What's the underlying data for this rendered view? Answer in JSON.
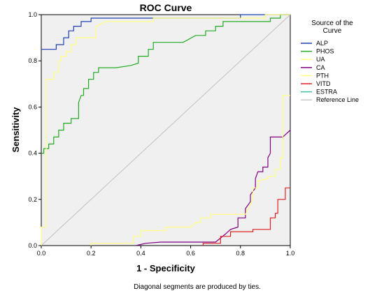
{
  "chart_data": {
    "type": "line",
    "title": "ROC Curve",
    "xlabel": "1 - Specificity",
    "ylabel": "Sensitivity",
    "xlim": [
      0,
      1
    ],
    "ylim": [
      0,
      1
    ],
    "xticks": [
      "0.0",
      "0.2",
      "0.4",
      "0.6",
      "0.8",
      "1.0"
    ],
    "yticks": [
      "0.0",
      "0.2",
      "0.4",
      "0.6",
      "0.8",
      "1.0"
    ],
    "grid": false,
    "plot_background": "#f0f0f0",
    "legend": {
      "title": "Source of the Curve",
      "position": "right"
    },
    "footnote": "Diagonal segments are produced by ties.",
    "series": [
      {
        "name": "ALP",
        "color": "#1f3fb4",
        "points": [
          [
            0,
            0.85
          ],
          [
            0.06,
            0.85
          ],
          [
            0.06,
            0.87
          ],
          [
            0.09,
            0.87
          ],
          [
            0.09,
            0.9
          ],
          [
            0.11,
            0.9
          ],
          [
            0.11,
            0.93
          ],
          [
            0.13,
            0.93
          ],
          [
            0.13,
            0.95
          ],
          [
            0.16,
            0.95
          ],
          [
            0.16,
            0.97
          ],
          [
            0.2,
            0.97
          ],
          [
            0.2,
            0.985
          ],
          [
            0.8,
            0.985
          ],
          [
            0.8,
            1.0
          ],
          [
            1,
            1
          ]
        ]
      },
      {
        "name": "PHOS",
        "color": "#22aa22",
        "points": [
          [
            0,
            0.4
          ],
          [
            0.01,
            0.4
          ],
          [
            0.01,
            0.42
          ],
          [
            0.03,
            0.42
          ],
          [
            0.03,
            0.44
          ],
          [
            0.05,
            0.44
          ],
          [
            0.05,
            0.47
          ],
          [
            0.07,
            0.47
          ],
          [
            0.07,
            0.5
          ],
          [
            0.09,
            0.5
          ],
          [
            0.09,
            0.53
          ],
          [
            0.12,
            0.53
          ],
          [
            0.12,
            0.55
          ],
          [
            0.15,
            0.55
          ],
          [
            0.15,
            0.62
          ],
          [
            0.16,
            0.65
          ],
          [
            0.17,
            0.65
          ],
          [
            0.17,
            0.68
          ],
          [
            0.19,
            0.68
          ],
          [
            0.19,
            0.72
          ],
          [
            0.21,
            0.72
          ],
          [
            0.21,
            0.75
          ],
          [
            0.23,
            0.75
          ],
          [
            0.23,
            0.77
          ],
          [
            0.3,
            0.77
          ],
          [
            0.36,
            0.78
          ],
          [
            0.39,
            0.79
          ],
          [
            0.39,
            0.82
          ],
          [
            0.43,
            0.82
          ],
          [
            0.43,
            0.85
          ],
          [
            0.45,
            0.85
          ],
          [
            0.45,
            0.88
          ],
          [
            0.57,
            0.88
          ],
          [
            0.62,
            0.91
          ],
          [
            0.66,
            0.91
          ],
          [
            0.66,
            0.93
          ],
          [
            0.7,
            0.93
          ],
          [
            0.7,
            0.95
          ],
          [
            0.73,
            0.95
          ],
          [
            0.73,
            0.97
          ],
          [
            0.92,
            0.97
          ],
          [
            0.92,
            0.985
          ],
          [
            0.96,
            0.985
          ],
          [
            0.96,
            1.0
          ],
          [
            1,
            1
          ]
        ]
      },
      {
        "name": "UA",
        "color": "#ffff80",
        "points": [
          [
            0,
            0
          ],
          [
            0,
            0.08
          ],
          [
            0.02,
            0.08
          ],
          [
            0.02,
            0.72
          ],
          [
            0.05,
            0.72
          ],
          [
            0.05,
            0.75
          ],
          [
            0.07,
            0.75
          ],
          [
            0.07,
            0.8
          ],
          [
            0.08,
            0.8
          ],
          [
            0.08,
            0.82
          ],
          [
            0.1,
            0.82
          ],
          [
            0.1,
            0.84
          ],
          [
            0.12,
            0.84
          ],
          [
            0.12,
            0.87
          ],
          [
            0.14,
            0.87
          ],
          [
            0.14,
            0.9
          ],
          [
            0.22,
            0.9
          ],
          [
            0.22,
            0.95
          ],
          [
            0.26,
            0.97
          ],
          [
            0.45,
            0.97
          ],
          [
            0.45,
            0.985
          ],
          [
            0.9,
            0.985
          ],
          [
            0.9,
            1.0
          ],
          [
            1,
            1
          ]
        ]
      },
      {
        "name": "CA",
        "color": "#800080",
        "points": [
          [
            0.38,
            0
          ],
          [
            0.42,
            0.01
          ],
          [
            0.48,
            0.015
          ],
          [
            0.6,
            0.015
          ],
          [
            0.7,
            0.015
          ],
          [
            0.74,
            0.05
          ],
          [
            0.76,
            0.07
          ],
          [
            0.79,
            0.08
          ],
          [
            0.79,
            0.12
          ],
          [
            0.82,
            0.12
          ],
          [
            0.82,
            0.16
          ],
          [
            0.84,
            0.19
          ],
          [
            0.84,
            0.22
          ],
          [
            0.86,
            0.25
          ],
          [
            0.86,
            0.29
          ],
          [
            0.87,
            0.32
          ],
          [
            0.89,
            0.32
          ],
          [
            0.89,
            0.34
          ],
          [
            0.91,
            0.34
          ],
          [
            0.91,
            0.38
          ],
          [
            0.92,
            0.4
          ],
          [
            0.92,
            0.47
          ],
          [
            0.97,
            0.47
          ],
          [
            1,
            0.5
          ]
        ]
      },
      {
        "name": "PTH",
        "color": "#ffff80",
        "points": [
          [
            0.2,
            0
          ],
          [
            0.2,
            0.01
          ],
          [
            0.37,
            0.01
          ],
          [
            0.37,
            0.04
          ],
          [
            0.4,
            0.04
          ],
          [
            0.4,
            0.065
          ],
          [
            0.5,
            0.065
          ],
          [
            0.5,
            0.08
          ],
          [
            0.6,
            0.08
          ],
          [
            0.62,
            0.1
          ],
          [
            0.64,
            0.1
          ],
          [
            0.64,
            0.12
          ],
          [
            0.68,
            0.12
          ],
          [
            0.68,
            0.135
          ],
          [
            0.82,
            0.135
          ],
          [
            0.85,
            0.2
          ],
          [
            0.85,
            0.25
          ],
          [
            0.87,
            0.25
          ],
          [
            0.87,
            0.28
          ],
          [
            0.91,
            0.29
          ],
          [
            0.91,
            0.3
          ],
          [
            0.94,
            0.3
          ],
          [
            0.94,
            0.33
          ],
          [
            0.96,
            0.33
          ],
          [
            0.96,
            0.38
          ],
          [
            0.97,
            0.38
          ],
          [
            0.97,
            0.65
          ],
          [
            1,
            0.65
          ]
        ]
      },
      {
        "name": "VITD",
        "color": "#e02020",
        "points": [
          [
            0.65,
            0
          ],
          [
            0.65,
            0.01
          ],
          [
            0.72,
            0.01
          ],
          [
            0.72,
            0.04
          ],
          [
            0.76,
            0.04
          ],
          [
            0.76,
            0.06
          ],
          [
            0.85,
            0.06
          ],
          [
            0.85,
            0.07
          ],
          [
            0.92,
            0.07
          ],
          [
            0.92,
            0.12
          ],
          [
            0.94,
            0.12
          ],
          [
            0.94,
            0.14
          ],
          [
            0.95,
            0.14
          ],
          [
            0.95,
            0.2
          ],
          [
            0.98,
            0.2
          ],
          [
            0.98,
            0.25
          ],
          [
            1,
            0.25
          ]
        ]
      },
      {
        "name": "ESTRA",
        "color": "#40c0a0",
        "points": []
      },
      {
        "name": "Reference Line",
        "color": "#c8c8c8",
        "points": [
          [
            0,
            0
          ],
          [
            1,
            1
          ]
        ]
      }
    ]
  }
}
